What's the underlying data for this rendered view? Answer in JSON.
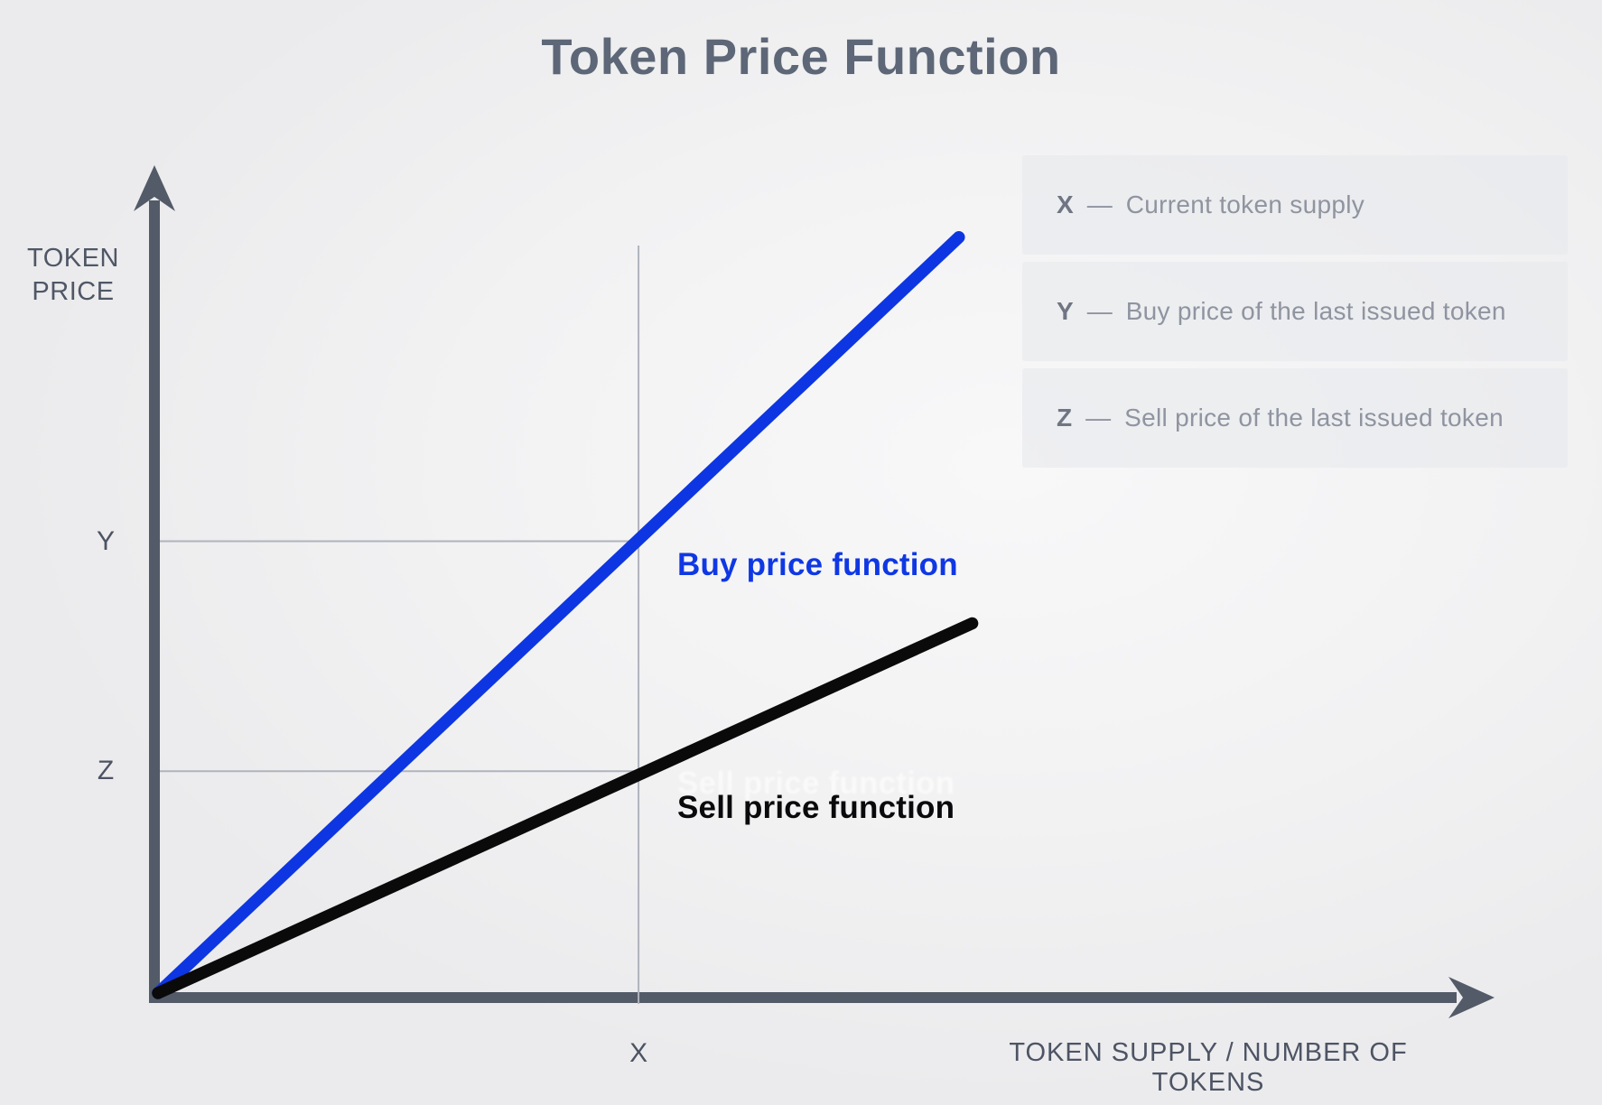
{
  "title": "Token Price Function",
  "colors": {
    "axis": "#535a68",
    "guide": "#b0b3bd",
    "buy_line": "#0d36e2",
    "sell_line": "#0a0a0b"
  },
  "axes": {
    "y_title_line1": "TOKEN",
    "y_title_line2": "PRICE",
    "x_title": "TOKEN SUPPLY / NUMBER OF TOKENS",
    "ticks": {
      "x": "X",
      "y": "Y",
      "z": "Z"
    }
  },
  "legend": [
    {
      "term": "X",
      "separator": "—",
      "description": "Current token supply"
    },
    {
      "term": "Y",
      "separator": "—",
      "description": "Buy price of the last issued token"
    },
    {
      "term": "Z",
      "separator": "—",
      "description": "Sell price of the last issued token"
    }
  ],
  "chart_data": {
    "type": "line",
    "title": "Token Price Function",
    "xlabel": "TOKEN SUPPLY / NUMBER OF TOKENS",
    "ylabel": "TOKEN PRICE",
    "x_range_normalized": [
      0,
      1
    ],
    "y_range_normalized": [
      0,
      1
    ],
    "grid": false,
    "legend_position": "top-right",
    "series": [
      {
        "name": "Buy price function",
        "color": "#0d36e2",
        "points_norm": [
          [
            0,
            0
          ],
          [
            0.6,
            0.92
          ]
        ]
      },
      {
        "name": "Sell price function",
        "color": "#0a0a0b",
        "points_norm": [
          [
            0,
            0
          ],
          [
            0.61,
            0.45
          ]
        ]
      }
    ],
    "annotations": {
      "x_marker": {
        "label": "X",
        "meaning": "Current token supply",
        "x_norm": 0.36
      },
      "y_marker": {
        "label": "Y",
        "meaning": "Buy price of the last issued token",
        "y_norm": 0.55
      },
      "z_marker": {
        "label": "Z",
        "meaning": "Sell price of the last issued token",
        "y_norm": 0.27
      }
    }
  }
}
